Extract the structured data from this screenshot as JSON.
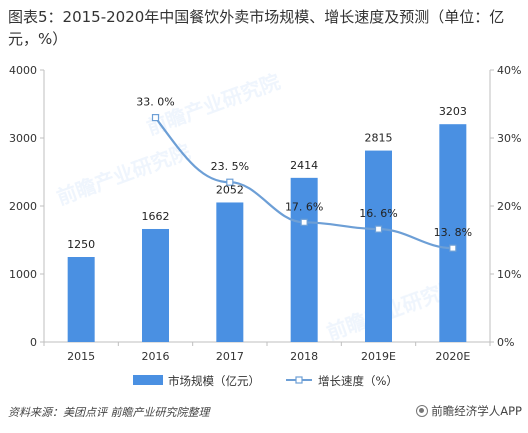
{
  "title": "图表5：2015-2020年中国餐饮外卖市场规模、增长速度及预测（单位：亿元，%）",
  "source_text": "资料来源：美团点评  前瞻产业研究院整理",
  "brand_text": "前瞻经济学人APP",
  "watermark_text": "前瞻产业研究院",
  "colors": {
    "bar": "#4a90e2",
    "line": "#6d9fd6",
    "axis": "#bfbfbf"
  },
  "chart_data": {
    "type": "bar",
    "categories": [
      "2015",
      "2016",
      "2017",
      "2018",
      "2019E",
      "2020E"
    ],
    "series": [
      {
        "name": "市场规模（亿元）",
        "type": "bar",
        "axis": "left",
        "values": [
          1250,
          1662,
          2052,
          2414,
          2815,
          3203
        ],
        "labels": [
          "1250",
          "1662",
          "2052",
          "2414",
          "2815",
          "3203"
        ]
      },
      {
        "name": "增长速度（%）",
        "type": "line",
        "axis": "right",
        "values": [
          null,
          33.0,
          23.5,
          17.6,
          16.6,
          13.8
        ],
        "labels": [
          "",
          "33. 0%",
          "23. 5%",
          "17. 6%",
          "16. 6%",
          "13. 8%"
        ]
      }
    ],
    "y_left": {
      "ticks": [
        "0",
        "1000",
        "2000",
        "3000",
        "4000"
      ],
      "range": [
        0,
        4000
      ]
    },
    "y_right": {
      "ticks": [
        "0%",
        "10%",
        "20%",
        "30%",
        "40%"
      ],
      "range": [
        0,
        40
      ]
    },
    "legend_position": "bottom",
    "grid": false
  }
}
